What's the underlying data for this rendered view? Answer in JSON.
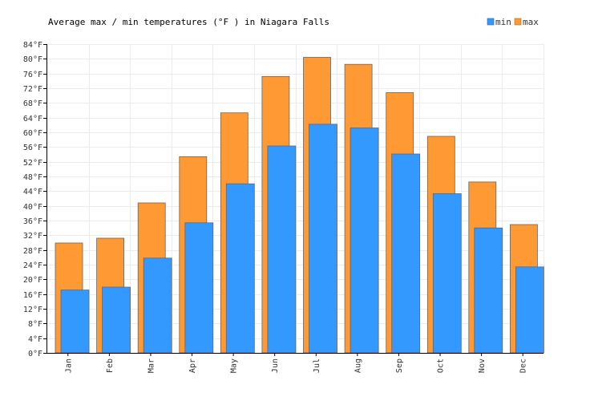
{
  "chart_data": {
    "type": "bar",
    "title": "Average max / min temperatures (°F ) in Niagara Falls",
    "xlabel": "",
    "ylabel": "",
    "categories": [
      "Jan",
      "Feb",
      "Mar",
      "Apr",
      "May",
      "Jun",
      "Jul",
      "Aug",
      "Sep",
      "Oct",
      "Nov",
      "Dec"
    ],
    "series": [
      {
        "name": "max",
        "color": "#ff9933",
        "values": [
          29.9,
          31.2,
          40.8,
          53.4,
          65.3,
          75.2,
          80.4,
          78.5,
          70.8,
          58.9,
          46.5,
          34.9
        ]
      },
      {
        "name": "min",
        "color": "#3399ff",
        "values": [
          17.1,
          17.9,
          25.8,
          35.4,
          46.0,
          56.3,
          62.2,
          61.2,
          54.1,
          43.3,
          34.0,
          23.4
        ]
      }
    ],
    "ylim": [
      0,
      84
    ],
    "ytick_step": 4,
    "tick_suffix": "°F",
    "grid": true,
    "legend_position": "top-right"
  }
}
